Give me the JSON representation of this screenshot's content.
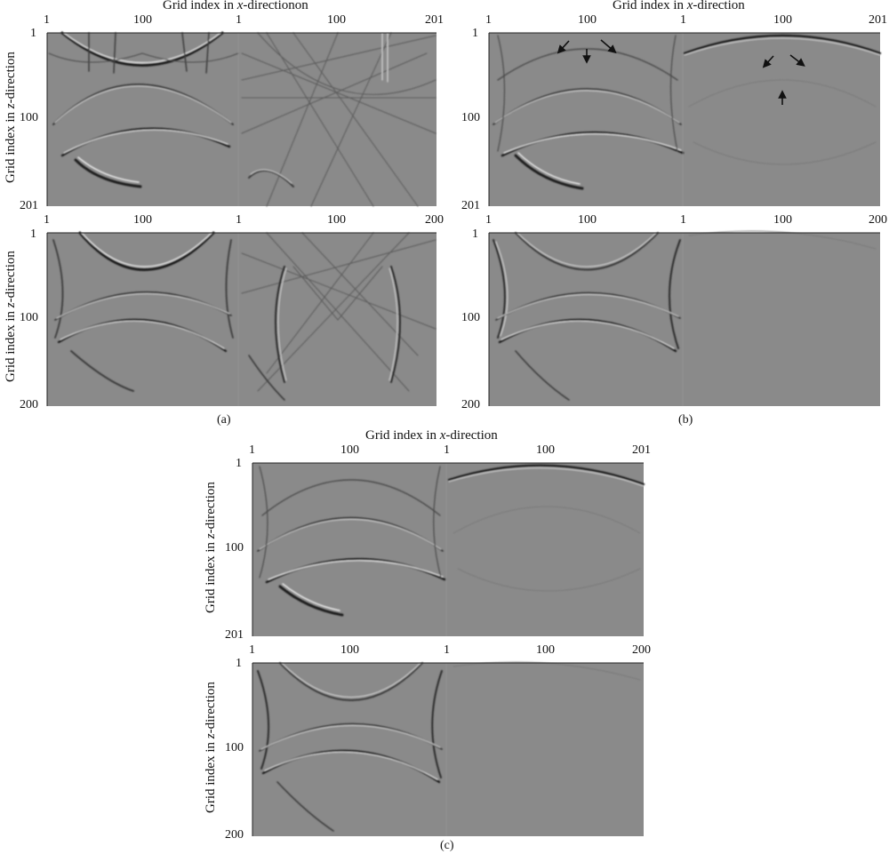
{
  "figure": {
    "axis_labels": {
      "x_prefix": "Grid index in ",
      "x_var": "x",
      "x_suffix": "-direction",
      "z_prefix": "Grid index in ",
      "z_var": "z",
      "z_suffix": "-direction",
      "stray_fragment": "on"
    },
    "subfigure_labels": {
      "a": "(a)",
      "b": "(b)",
      "c": "(c)"
    },
    "ticks": {
      "x_top_row": [
        "1",
        "100",
        "1",
        "100",
        "201"
      ],
      "x_bottom_row": [
        "1",
        "100",
        "1",
        "100",
        "200"
      ],
      "z_top_row": [
        "1",
        "100",
        "201"
      ],
      "z_bottom_row": [
        "1",
        "100",
        "200"
      ]
    },
    "annotations": {
      "arrow_glyph": "arrow"
    },
    "colors": {
      "background_gray": "#8a8a8a",
      "wavefront_dark": "#1e1e1e",
      "wavefront_light": "#e8e8e8"
    }
  }
}
